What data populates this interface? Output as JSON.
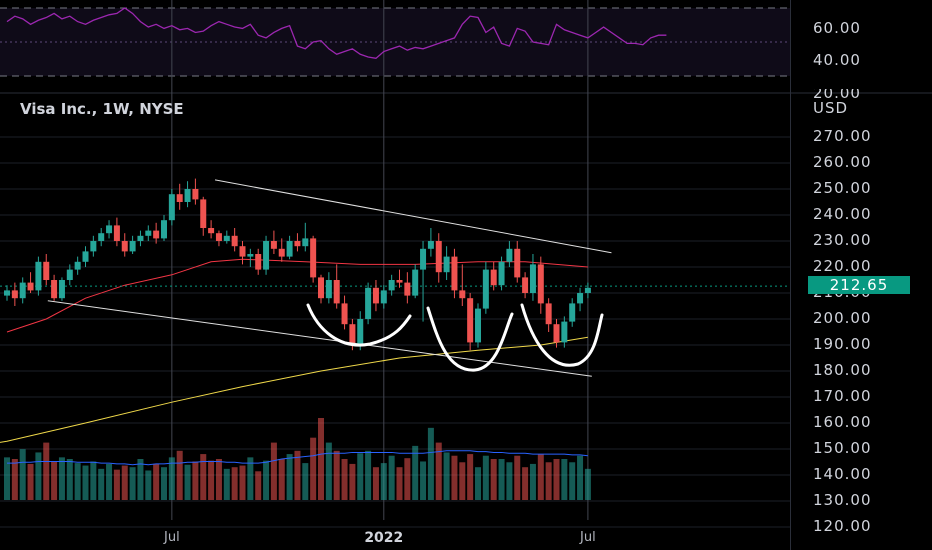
{
  "chart_data": [
    {
      "type": "line",
      "name": "rsi-pane",
      "y_ticks": [
        "60.00",
        "40.00",
        "20.00"
      ],
      "upper_band": 70,
      "lower_band": 30,
      "ylim": [
        20,
        70
      ],
      "series": [
        {
          "color": "#9c27b0",
          "values": [
            60,
            64,
            62,
            58,
            61,
            63,
            66,
            62,
            64,
            60,
            58,
            61,
            63,
            65,
            66,
            70,
            66,
            60,
            56,
            58,
            55,
            57,
            54,
            55,
            52,
            53,
            57,
            60,
            58,
            56,
            55,
            58,
            50,
            48,
            52,
            55,
            57,
            42,
            40,
            45,
            46,
            40,
            36,
            38,
            40,
            36,
            34,
            33,
            38,
            40,
            42,
            39,
            41,
            40,
            42,
            44,
            46,
            48,
            58,
            64,
            63,
            52,
            56,
            44,
            42,
            55,
            53,
            45,
            44,
            43,
            58,
            54,
            52,
            50,
            48,
            52,
            56,
            52,
            48,
            44,
            44,
            43,
            48,
            50,
            50
          ]
        }
      ]
    },
    {
      "type": "candlestick",
      "title": "Visa Inc., 1W, NYSE",
      "unit": "USD",
      "y_ticks": [
        "270.00",
        "260.00",
        "250.00",
        "240.00",
        "230.00",
        "220.00",
        "210.00",
        "200.00",
        "190.00",
        "180.00",
        "170.00",
        "160.00",
        "150.00",
        "140.00",
        "130.00",
        "120.00"
      ],
      "ylim": [
        115,
        285
      ],
      "x_ticks": [
        {
          "label": "Jul",
          "index": 21,
          "bold": false
        },
        {
          "label": "2022",
          "index": 48,
          "bold": true
        },
        {
          "label": "Jul",
          "index": 74,
          "bold": false
        }
      ],
      "last_price": "212.65",
      "ohlc": [
        [
          209,
          213,
          207,
          211
        ],
        [
          211,
          214,
          205,
          208
        ],
        [
          208,
          216,
          206,
          214
        ],
        [
          214,
          218,
          210,
          211
        ],
        [
          211,
          224,
          209,
          222
        ],
        [
          222,
          225,
          213,
          215
        ],
        [
          215,
          217,
          207,
          208
        ],
        [
          208,
          216,
          207,
          215
        ],
        [
          215,
          221,
          213,
          219
        ],
        [
          219,
          224,
          217,
          222
        ],
        [
          222,
          228,
          220,
          226
        ],
        [
          226,
          232,
          224,
          230
        ],
        [
          230,
          235,
          228,
          233
        ],
        [
          233,
          238,
          231,
          236
        ],
        [
          236,
          239,
          228,
          230
        ],
        [
          230,
          233,
          224,
          226
        ],
        [
          226,
          232,
          225,
          230
        ],
        [
          230,
          234,
          228,
          232
        ],
        [
          232,
          236,
          230,
          234
        ],
        [
          234,
          237,
          229,
          231
        ],
        [
          231,
          240,
          230,
          238
        ],
        [
          238,
          250,
          236,
          248
        ],
        [
          248,
          252,
          242,
          245
        ],
        [
          245,
          253,
          243,
          250
        ],
        [
          250,
          254,
          244,
          246
        ],
        [
          246,
          247,
          232,
          235
        ],
        [
          235,
          238,
          231,
          233
        ],
        [
          233,
          234,
          228,
          230
        ],
        [
          230,
          234,
          229,
          232
        ],
        [
          232,
          235,
          226,
          228
        ],
        [
          228,
          230,
          221,
          224
        ],
        [
          224,
          227,
          220,
          225
        ],
        [
          225,
          227,
          217,
          219
        ],
        [
          219,
          232,
          217,
          230
        ],
        [
          230,
          234,
          225,
          227
        ],
        [
          227,
          231,
          222,
          224
        ],
        [
          224,
          232,
          223,
          230
        ],
        [
          230,
          233,
          226,
          228
        ],
        [
          228,
          237,
          226,
          231
        ],
        [
          231,
          232,
          214,
          216
        ],
        [
          216,
          217,
          206,
          208
        ],
        [
          208,
          218,
          206,
          215
        ],
        [
          215,
          221,
          204,
          206
        ],
        [
          206,
          209,
          196,
          198
        ],
        [
          198,
          200,
          188,
          190
        ],
        [
          190,
          203,
          188,
          200
        ],
        [
          200,
          214,
          198,
          212
        ],
        [
          212,
          215,
          203,
          206
        ],
        [
          206,
          213,
          204,
          211
        ],
        [
          211,
          217,
          209,
          215
        ],
        [
          215,
          219,
          212,
          214
        ],
        [
          214,
          218,
          206,
          209
        ],
        [
          209,
          221,
          208,
          219
        ],
        [
          219,
          230,
          199,
          227
        ],
        [
          227,
          235,
          224,
          230
        ],
        [
          230,
          233,
          214,
          218
        ],
        [
          218,
          228,
          215,
          224
        ],
        [
          224,
          227,
          208,
          211
        ],
        [
          211,
          221,
          205,
          208
        ],
        [
          208,
          210,
          188,
          191
        ],
        [
          191,
          206,
          189,
          204
        ],
        [
          204,
          222,
          202,
          219
        ],
        [
          219,
          222,
          211,
          213
        ],
        [
          213,
          224,
          211,
          222
        ],
        [
          222,
          230,
          220,
          227
        ],
        [
          227,
          230,
          214,
          216
        ],
        [
          216,
          218,
          208,
          210
        ],
        [
          210,
          225,
          207,
          221
        ],
        [
          221,
          224,
          202,
          206
        ],
        [
          206,
          208,
          195,
          198
        ],
        [
          198,
          200,
          189,
          191
        ],
        [
          191,
          201,
          189,
          199
        ],
        [
          199,
          208,
          197,
          206
        ],
        [
          206,
          212,
          203,
          210
        ],
        [
          210,
          214,
          208,
          212
        ]
      ],
      "series": [
        {
          "color": "#f23645",
          "values": [
            [
              0,
              195
            ],
            [
              5,
              200
            ],
            [
              10,
              208
            ],
            [
              15,
              213
            ],
            [
              21,
              217
            ],
            [
              26,
              222
            ],
            [
              30,
              223
            ],
            [
              38,
              222
            ],
            [
              45,
              221
            ],
            [
              52,
              221
            ],
            [
              60,
              222
            ],
            [
              66,
              222
            ],
            [
              74,
              220
            ]
          ]
        },
        {
          "color": "#f0d94a",
          "values": [
            [
              -6,
              150
            ],
            [
              0,
              153
            ],
            [
              10,
              160
            ],
            [
              21,
              168
            ],
            [
              30,
              174
            ],
            [
              40,
              180
            ],
            [
              50,
              185
            ],
            [
              60,
              188
            ],
            [
              68,
              190
            ],
            [
              74,
              193
            ]
          ]
        }
      ],
      "volume_bars": [
        52,
        50,
        62,
        44,
        58,
        70,
        47,
        52,
        50,
        45,
        42,
        47,
        38,
        44,
        37,
        42,
        40,
        50,
        36,
        44,
        40,
        52,
        60,
        43,
        47,
        56,
        48,
        50,
        38,
        40,
        42,
        52,
        35,
        48,
        70,
        50,
        56,
        60,
        45,
        76,
        100,
        70,
        60,
        50,
        44,
        57,
        60,
        40,
        45,
        54,
        40,
        51,
        66,
        47,
        88,
        70,
        58,
        54,
        46,
        56,
        40,
        54,
        50,
        50,
        46,
        54,
        40,
        44,
        56,
        46,
        50,
        50,
        46,
        54,
        38
      ],
      "volume_ma": [
        45,
        45,
        46,
        46,
        47,
        47,
        47,
        47,
        47,
        46,
        46,
        46,
        45,
        45,
        44,
        44,
        43,
        44,
        43,
        44,
        44,
        45,
        45,
        46,
        46,
        47,
        47,
        47,
        46,
        46,
        45,
        45,
        45,
        46,
        48,
        50,
        51,
        52,
        53,
        54,
        56,
        57,
        57,
        57,
        58,
        58,
        58,
        58,
        58,
        58,
        57,
        57,
        57,
        57,
        58,
        59,
        60,
        60,
        60,
        60,
        59,
        59,
        58,
        58,
        57,
        57,
        57,
        56,
        56,
        56,
        56,
        56,
        55,
        55,
        54
      ]
    }
  ]
}
